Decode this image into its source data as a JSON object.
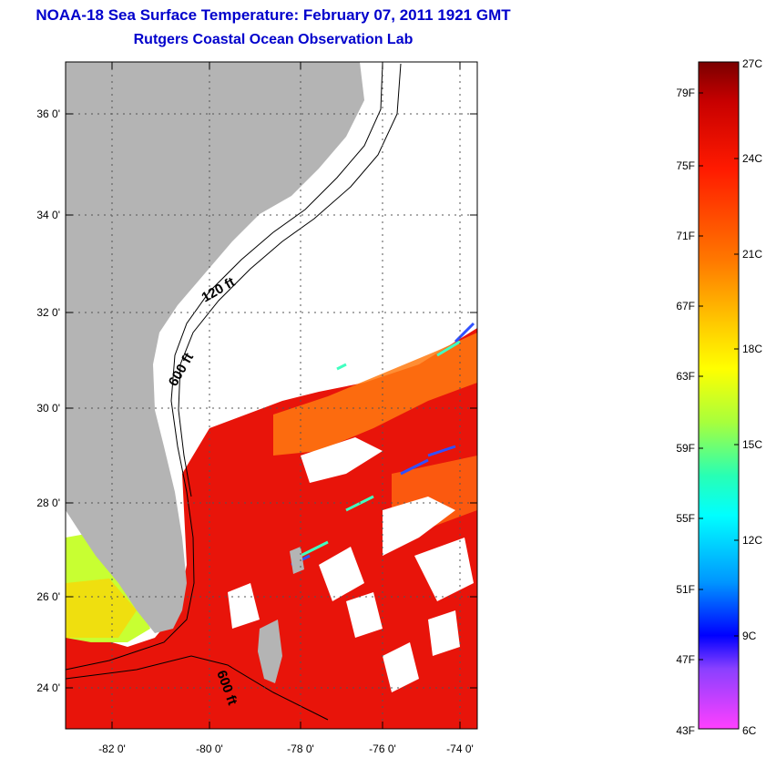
{
  "header": {
    "title": "NOAA-18 Sea Surface Temperature:  February 07, 2011 1921 GMT",
    "subtitle": "Rutgers Coastal Ocean Observation Lab"
  },
  "map": {
    "lat_labels": [
      "36 0'",
      "34 0'",
      "32 0'",
      "30 0'",
      "28 0'",
      "26 0'",
      "24 0'"
    ],
    "lon_labels": [
      "-82 0'",
      "-80 0'",
      "-78 0'",
      "-76 0'",
      "-74 0'"
    ],
    "contour_labels": [
      "120 ft",
      "600 ft",
      "600 ft"
    ],
    "colors": {
      "land": "#b4b4b4",
      "cloud": "#ffffff",
      "warm_water": "#e8140a"
    }
  },
  "colorbar": {
    "fahrenheit": [
      "79F",
      "75F",
      "71F",
      "67F",
      "63F",
      "59F",
      "55F",
      "51F",
      "47F",
      "43F"
    ],
    "celsius": [
      "27C",
      "24C",
      "21C",
      "18C",
      "15C",
      "12C",
      "9C",
      "6C"
    ]
  }
}
